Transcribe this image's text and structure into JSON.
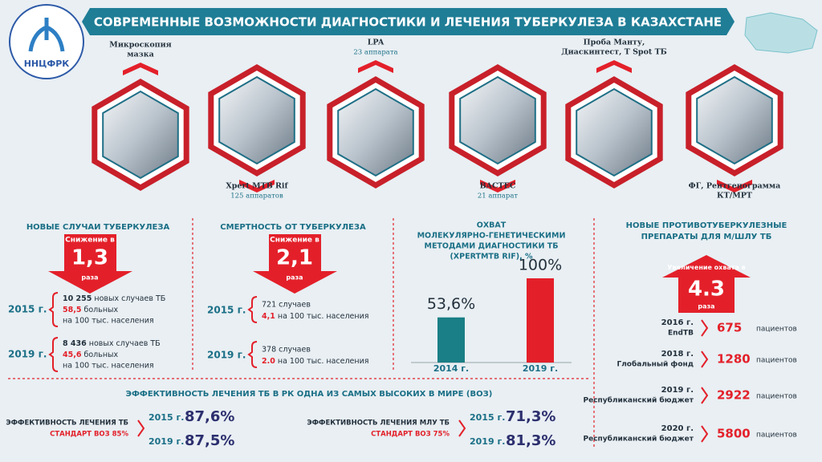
{
  "header": {
    "title": "СОВРЕМЕННЫЕ ВОЗМОЖНОСТИ ДИАГНОСТИКИ И ЛЕЧЕНИЯ ТУБЕРКУЛЕЗА В КАЗАХСТАНЕ",
    "logo": "ННЦФРК"
  },
  "methods": [
    {
      "label": [
        "Микроскопия",
        "мазка"
      ]
    },
    {
      "label": [
        "Xpert MTB Rif"
      ],
      "sub": "125 аппаратов"
    },
    {
      "label": [
        "LPA"
      ],
      "sub": "23 аппарата"
    },
    {
      "label": [
        "BACTEC"
      ],
      "sub": "21 аппарат"
    },
    {
      "label": [
        "Проба Манту,",
        "Диаскинтест, T Spot ТБ"
      ]
    },
    {
      "label": [
        "ФГ, Рентгенограмма",
        "КТ/МРТ"
      ]
    }
  ],
  "new_cases": {
    "title": "НОВЫЕ СЛУЧАИ ТУБЕРКУЛЕЗА",
    "arrow": {
      "top": "Снижение в",
      "value": "1,3",
      "bottom": "раза"
    },
    "rows": [
      {
        "year": "2015 г.",
        "cases": "10 255",
        "cases_text": "новых случаев ТБ",
        "rate": "58,5",
        "rate_text": "больных",
        "per": "на 100 тыс. населения"
      },
      {
        "year": "2019 г.",
        "cases": "8 436",
        "cases_text": "новых случаев ТБ",
        "rate": "45,6",
        "rate_text": "больных",
        "per": "на 100 тыс. населения"
      }
    ]
  },
  "mortality": {
    "title": "СМЕРТНОСТЬ ОТ ТУБЕРКУЛЕЗА",
    "arrow": {
      "top": "Снижение в",
      "value": "2,1",
      "bottom": "раза"
    },
    "rows": [
      {
        "year": "2015 г.",
        "cases": "721 случаев",
        "rate": "4,1",
        "per": "на 100 тыс. населения"
      },
      {
        "year": "2019 г.",
        "cases": "378 случаев",
        "rate": "2.0",
        "per": "на 100 тыс. населения"
      }
    ]
  },
  "coverage": {
    "title": [
      "ОХВАТ",
      "МОЛЕКУЛЯРНО-ГЕНЕТИЧЕСКИМИ",
      "МЕТОДАМИ ДИАГНОСТИКИ ТБ",
      "(XPERTMTB RIF), %"
    ],
    "categories": [
      "2014 г.",
      "2019 г."
    ],
    "values": [
      53.6,
      100
    ],
    "value_labels": [
      "53,6%",
      "100%"
    ],
    "colors": [
      "#1a7f86",
      "#e3202a"
    ]
  },
  "new_drugs": {
    "title": [
      "НОВЫЕ ПРОТИВОТУБЕРКУЛЕЗНЫЕ",
      "ПРЕПАРАТЫ ДЛЯ М/ШЛУ ТБ"
    ],
    "arrow": {
      "top": "Увеличение охвата в",
      "value": "4.3",
      "bottom": "раза"
    },
    "rows": [
      {
        "year": "2016 г.",
        "source": "EndTB",
        "count": "675",
        "unit": "пациентов"
      },
      {
        "year": "2018 г.",
        "source": "Глобальный фонд",
        "count": "1280",
        "unit": "пациентов"
      },
      {
        "year": "2019 г.",
        "source": "Республиканский бюджет",
        "count": "2922",
        "unit": "пациентов"
      },
      {
        "year": "2020 г.",
        "source": "Республиканский бюджет",
        "count": "5800",
        "unit": "пациентов"
      }
    ]
  },
  "effectiveness": {
    "title": "ЭФФЕКТИВНОСТЬ ЛЕЧЕНИЯ ТБ В РК  ОДНА ИЗ САМЫХ ВЫСОКИХ В МИРЕ (ВОЗ)",
    "groups": [
      {
        "label": "ЭФФЕКТИВНОСТЬ ЛЕЧЕНИЯ ТБ",
        "standard": "СТАНДАРТ ВОЗ 85%",
        "rows": [
          {
            "year": "2015 г.",
            "value": "87,6%"
          },
          {
            "year": "2019 г.",
            "value": "87,5%"
          }
        ]
      },
      {
        "label": "ЭФФЕКТИВНОСТЬ ЛЕЧЕНИЯ МЛУ ТБ",
        "standard": "СТАНДАРТ ВОЗ 75%",
        "rows": [
          {
            "year": "2015 г.",
            "value": "71,3%"
          },
          {
            "year": "2019 г.",
            "value": "81,3%"
          }
        ]
      }
    ]
  }
}
